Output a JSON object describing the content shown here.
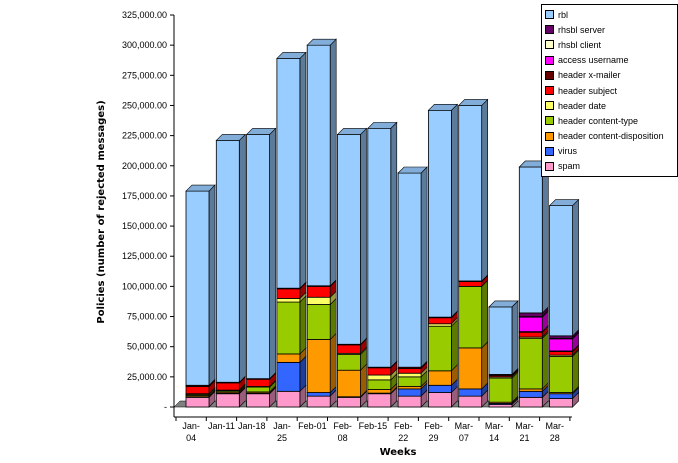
{
  "chart_data": {
    "type": "bar",
    "stacked": true,
    "style": "3d",
    "title": "",
    "xlabel": "Weeks",
    "ylabel": "Policies (number of rejected messages)",
    "ylim": [
      0,
      325000
    ],
    "yticks": [
      "-",
      "25,000.00",
      "50,000.00",
      "75,000.00",
      "100,000.00",
      "125,000.00",
      "150,000.00",
      "175,000.00",
      "200,000.00",
      "225,000.00",
      "250,000.00",
      "275,000.00",
      "300,000.00",
      "325,000.00"
    ],
    "categories": [
      "Jan-04",
      "Jan-11",
      "Jan-18",
      "Jan-25",
      "Feb-01",
      "Feb-08",
      "Feb-15",
      "Feb-22",
      "Feb-29",
      "Mar-07",
      "Mar-14",
      "Mar-21",
      "Mar-28"
    ],
    "category_labels": [
      [
        "Jan-",
        "04"
      ],
      [
        "Jan-11",
        ""
      ],
      [
        "Jan-18",
        ""
      ],
      [
        "Jan-",
        "25"
      ],
      [
        "Feb-01",
        ""
      ],
      [
        "Feb-",
        "08"
      ],
      [
        "Feb-15",
        ""
      ],
      [
        "Feb-",
        "22"
      ],
      [
        "Feb-",
        "29"
      ],
      [
        "Mar-",
        "07"
      ],
      [
        "Mar-",
        "14"
      ],
      [
        "Mar-",
        "21"
      ],
      [
        "Mar-",
        "28"
      ]
    ],
    "legend_position": "top-right",
    "series": [
      {
        "name": "spam",
        "color": "#ff99cc",
        "values": [
          8000,
          11000,
          11000,
          13000,
          9000,
          8000,
          11000,
          9000,
          12000,
          9000,
          2000,
          8000,
          7000
        ]
      },
      {
        "name": "virus",
        "color": "#3366ff",
        "values": [
          500,
          500,
          500,
          24000,
          3000,
          500,
          500,
          6000,
          6000,
          6000,
          1000,
          5000,
          4000
        ]
      },
      {
        "name": "header content-disposition",
        "color": "#ff9900",
        "values": [
          1000,
          1000,
          1000,
          7000,
          44000,
          22000,
          3000,
          2000,
          12000,
          34000,
          1000,
          2000,
          1000
        ]
      },
      {
        "name": "header content-type",
        "color": "#99cc00",
        "values": [
          1000,
          1000,
          4000,
          43000,
          29000,
          13000,
          8000,
          8000,
          37000,
          51000,
          20000,
          42000,
          30000
        ]
      },
      {
        "name": "header date",
        "color": "#ffff66",
        "values": [
          500,
          500,
          500,
          3000,
          6000,
          1000,
          4000,
          3000,
          2000,
          0,
          1000,
          1000,
          1000
        ]
      },
      {
        "name": "header subject",
        "color": "#ff0000",
        "values": [
          6000,
          6000,
          6000,
          8000,
          9000,
          7000,
          6000,
          4000,
          5000,
          4000,
          1000,
          4000,
          3000
        ]
      },
      {
        "name": "header x-mailer",
        "color": "#660000",
        "values": [
          1000,
          500,
          500,
          500,
          500,
          500,
          500,
          1000,
          500,
          500,
          1000,
          500,
          500
        ]
      },
      {
        "name": "access username",
        "color": "#ff00ff",
        "values": [
          0,
          0,
          0,
          0,
          0,
          0,
          0,
          0,
          0,
          0,
          0,
          12000,
          10000
        ]
      },
      {
        "name": "rhsbl client",
        "color": "#ffffcc",
        "values": [
          0,
          0,
          0,
          0,
          0,
          0,
          0,
          0,
          0,
          0,
          0,
          500,
          500
        ]
      },
      {
        "name": "rhsbl server",
        "color": "#660066",
        "values": [
          0,
          0,
          0,
          0,
          0,
          0,
          0,
          0,
          0,
          0,
          0,
          3000,
          2000
        ]
      },
      {
        "name": "rbl",
        "color": "#99ccff",
        "values": [
          161000,
          200500,
          202500,
          190500,
          199500,
          174000,
          198000,
          161000,
          171500,
          145500,
          56000,
          121000,
          108000
        ]
      }
    ],
    "grid": false
  }
}
